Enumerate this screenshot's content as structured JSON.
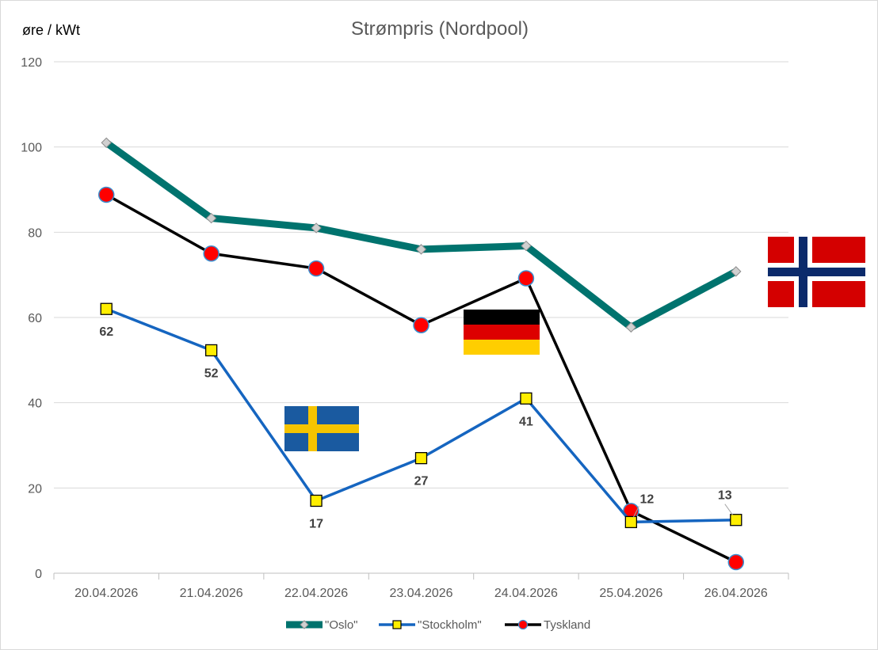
{
  "chart_data": {
    "type": "line",
    "title": "Strømpris (Nordpool)",
    "ylabel": "øre / kWt",
    "xlabel": "",
    "ylim": [
      0,
      120
    ],
    "y_ticks": [
      0,
      20,
      40,
      60,
      80,
      100,
      120
    ],
    "grid": true,
    "legend_position": "bottom",
    "categories": [
      "20.04.2026",
      "21.04.2026",
      "22.04.2026",
      "23.04.2026",
      "24.04.2026",
      "25.04.2026",
      "26.04.2026"
    ],
    "series": [
      {
        "name": "\"Oslo\"",
        "values": [
          101,
          83.3,
          81,
          76,
          76.8,
          57.7,
          70.8
        ],
        "color": "#00736e",
        "marker": "diamond"
      },
      {
        "name": "\"Stockholm\"",
        "values": [
          62,
          52.3,
          17,
          27,
          41,
          12,
          12.5
        ],
        "color": "#1565c0",
        "marker": "square",
        "data_labels": [
          "62",
          "52",
          "17",
          "27",
          "41",
          "12",
          "13"
        ]
      },
      {
        "name": "Tyskland",
        "values": [
          88.8,
          75,
          71.5,
          58.2,
          69.2,
          14.6,
          2.6
        ],
        "color": "#000000",
        "marker": "circle"
      }
    ],
    "flags": [
      "norway-flag",
      "sweden-flag",
      "germany-flag"
    ]
  }
}
